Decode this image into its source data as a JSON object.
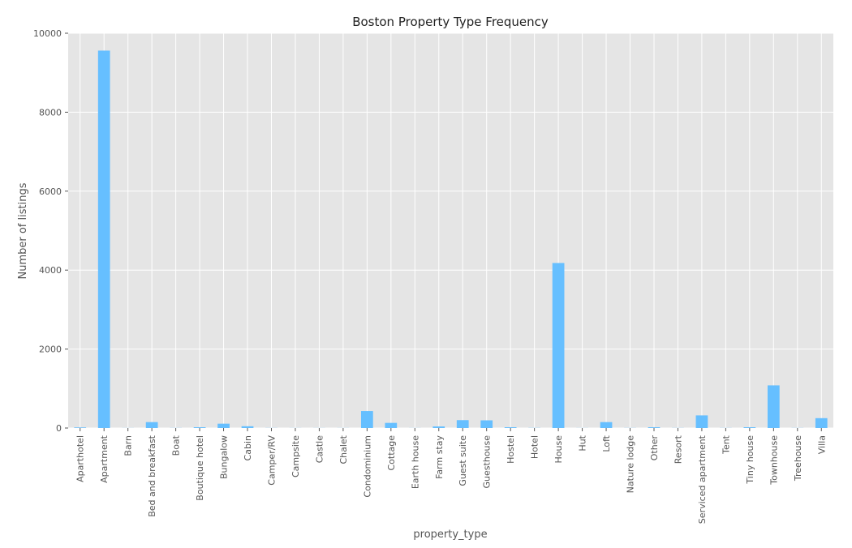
{
  "chart_data": {
    "type": "bar",
    "title": "Boston Property Type Frequency",
    "xlabel": "property_type",
    "ylabel": "Number of listings",
    "ylim": [
      0,
      10000
    ],
    "yticks": [
      "0",
      "2000",
      "4000",
      "6000",
      "8000",
      "10000"
    ],
    "grid": true,
    "categories": [
      "Aparthotel",
      "Apartment",
      "Barn",
      "Bed and breakfast",
      "Boat",
      "Boutique hotel",
      "Bungalow",
      "Cabin",
      "Camper/RV",
      "Campsite",
      "Castle",
      "Chalet",
      "Condominium",
      "Cottage",
      "Earth house",
      "Farm stay",
      "Guest suite",
      "Guesthouse",
      "Hostel",
      "Hotel",
      "House",
      "Hut",
      "Loft",
      "Nature lodge",
      "Other",
      "Resort",
      "Serviced apartment",
      "Tent",
      "Tiny house",
      "Townhouse",
      "Treehouse",
      "Villa"
    ],
    "values": [
      15,
      9560,
      2,
      150,
      3,
      20,
      110,
      45,
      3,
      2,
      2,
      2,
      430,
      130,
      2,
      40,
      200,
      195,
      20,
      4,
      4180,
      2,
      150,
      3,
      20,
      3,
      320,
      3,
      20,
      1080,
      3,
      250
    ],
    "colors": {
      "bar": "#66bfff",
      "plot_bg": "#e5e5e5",
      "grid": "#ffffff"
    }
  }
}
